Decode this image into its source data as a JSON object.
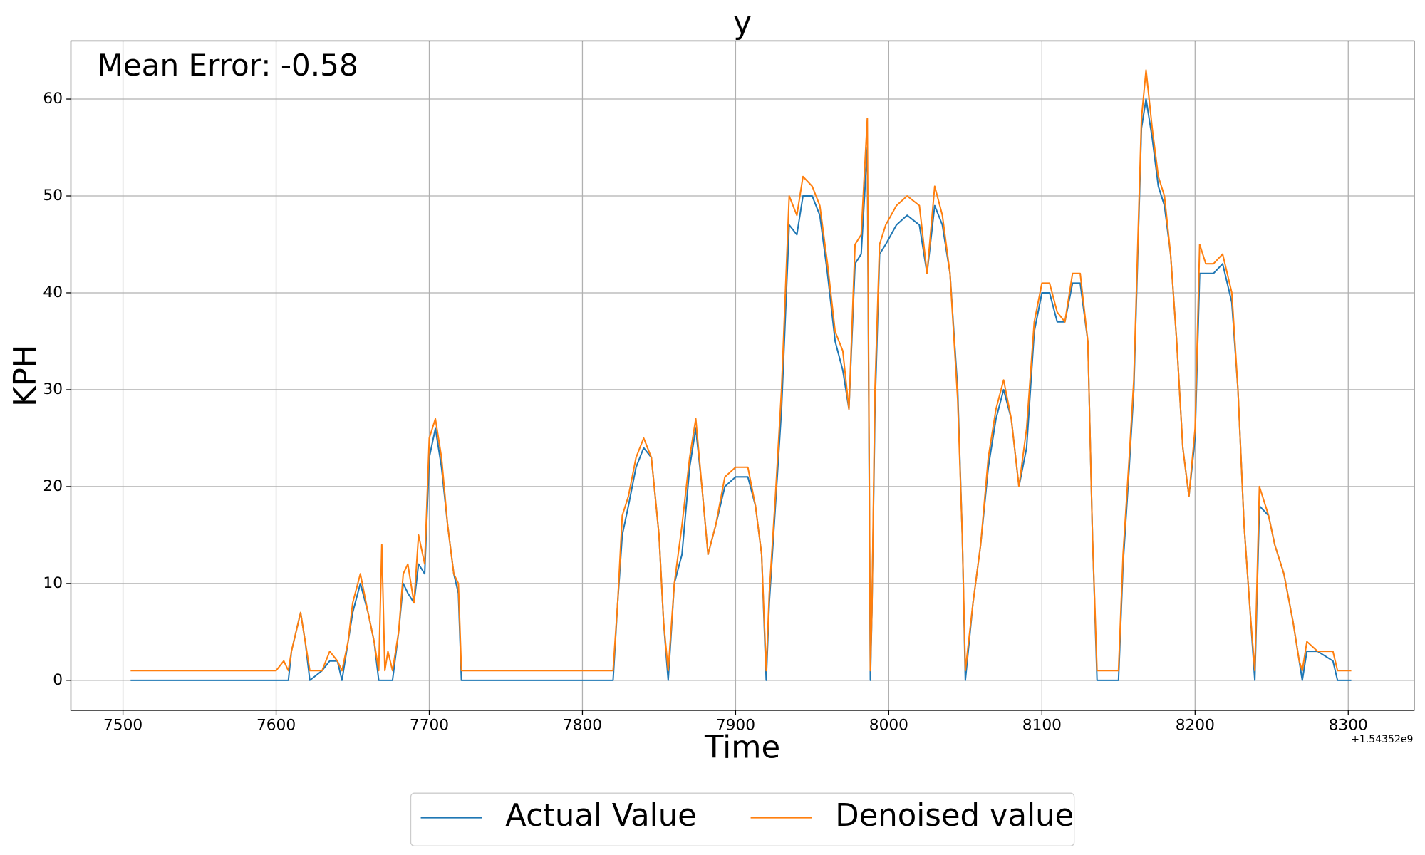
{
  "chart_data": {
    "type": "line",
    "title": "y",
    "xlabel": "Time",
    "ylabel": "KPH",
    "annotation": "Mean Error: -0.58",
    "x_offset_label": "+1.54352e9",
    "xlim": [
      7466,
      8343
    ],
    "ylim": [
      -3.1,
      66
    ],
    "xticks": [
      7500,
      7600,
      7700,
      7800,
      7900,
      8000,
      8100,
      8200,
      8300
    ],
    "yticks": [
      0,
      10,
      20,
      30,
      40,
      50,
      60
    ],
    "grid": true,
    "legend": "bottom",
    "x": [
      7505,
      7600,
      7605,
      7608,
      7610,
      7613,
      7616,
      7619,
      7622,
      7630,
      7635,
      7640,
      7643,
      7647,
      7650,
      7655,
      7660,
      7664,
      7667,
      7669,
      7671,
      7673,
      7676,
      7680,
      7683,
      7686,
      7690,
      7693,
      7697,
      7700,
      7704,
      7708,
      7712,
      7716,
      7719,
      7721,
      7820,
      7823,
      7826,
      7830,
      7835,
      7840,
      7845,
      7850,
      7853,
      7856,
      7860,
      7865,
      7870,
      7874,
      7878,
      7882,
      7887,
      7893,
      7900,
      7908,
      7913,
      7917,
      7920,
      7922,
      7926,
      7930,
      7935,
      7940,
      7944,
      7950,
      7955,
      7960,
      7965,
      7970,
      7974,
      7978,
      7982,
      7986,
      7988,
      7989,
      7991,
      7994,
      7998,
      8005,
      8012,
      8020,
      8025,
      8030,
      8035,
      8040,
      8045,
      8048,
      8050,
      8055,
      8060,
      8065,
      8070,
      8075,
      8080,
      8085,
      8090,
      8095,
      8100,
      8105,
      8110,
      8115,
      8120,
      8125,
      8130,
      8133,
      8136,
      8150,
      8153,
      8157,
      8160,
      8165,
      8168,
      8172,
      8176,
      8180,
      8184,
      8188,
      8192,
      8196,
      8200,
      8203,
      8207,
      8212,
      8218,
      8224,
      8228,
      8232,
      8236,
      8239,
      8242,
      8248,
      8252,
      8258,
      8264,
      8268,
      8270,
      8273,
      8280,
      8290,
      8293,
      8302
    ],
    "series": [
      {
        "name": "Actual Value",
        "color": "#1f77b4",
        "values": [
          0,
          0,
          0,
          0,
          3,
          5,
          7,
          4,
          0,
          1,
          2,
          2,
          0,
          4,
          7,
          10,
          7,
          4,
          0,
          0,
          0,
          0,
          0,
          5,
          10,
          9,
          8,
          12,
          11,
          23,
          26,
          22,
          16,
          11,
          9,
          0,
          0,
          8,
          15,
          18,
          22,
          24,
          23,
          15,
          6,
          0,
          10,
          13,
          22,
          26,
          20,
          13,
          16,
          20,
          21,
          21,
          18,
          13,
          0,
          8,
          18,
          28,
          47,
          46,
          50,
          50,
          48,
          42,
          35,
          32,
          28,
          43,
          44,
          55,
          0,
          7,
          28,
          44,
          45,
          47,
          48,
          47,
          42,
          49,
          47,
          42,
          30,
          15,
          0,
          8,
          14,
          22,
          27,
          30,
          27,
          20,
          24,
          36,
          40,
          40,
          37,
          37,
          41,
          41,
          35,
          15,
          0,
          0,
          12,
          22,
          30,
          57,
          60,
          56,
          51,
          49,
          44,
          35,
          24,
          19,
          25,
          42,
          42,
          42,
          43,
          39,
          30,
          16,
          7,
          0,
          18,
          17,
          14,
          11,
          6,
          2,
          0,
          3,
          3,
          2,
          0,
          0
        ]
      },
      {
        "name": "Denoised value",
        "color": "#ff7f0e",
        "values": [
          1,
          1,
          2,
          1,
          3,
          5,
          7,
          4,
          1,
          1,
          3,
          2,
          1,
          4,
          8,
          11,
          7,
          4,
          1,
          14,
          1,
          3,
          1,
          5,
          11,
          12,
          8,
          15,
          12,
          25,
          27,
          23,
          16,
          11,
          10,
          1,
          1,
          8,
          17,
          19,
          23,
          25,
          23,
          15,
          6,
          1,
          10,
          16,
          23,
          27,
          20,
          13,
          16,
          21,
          22,
          22,
          18,
          13,
          1,
          9,
          19,
          30,
          50,
          48,
          52,
          51,
          49,
          43,
          36,
          34,
          28,
          45,
          46,
          58,
          1,
          7,
          30,
          45,
          47,
          49,
          50,
          49,
          42,
          51,
          48,
          42,
          29,
          15,
          1,
          8,
          14,
          23,
          28,
          31,
          27,
          20,
          26,
          37,
          41,
          41,
          38,
          37,
          42,
          42,
          35,
          15,
          1,
          1,
          13,
          23,
          31,
          58,
          63,
          57,
          52,
          50,
          44,
          35,
          24,
          19,
          26,
          45,
          43,
          43,
          44,
          40,
          30,
          16,
          7,
          1,
          20,
          17,
          14,
          11,
          6,
          2,
          1,
          4,
          3,
          3,
          1,
          1
        ]
      }
    ]
  }
}
